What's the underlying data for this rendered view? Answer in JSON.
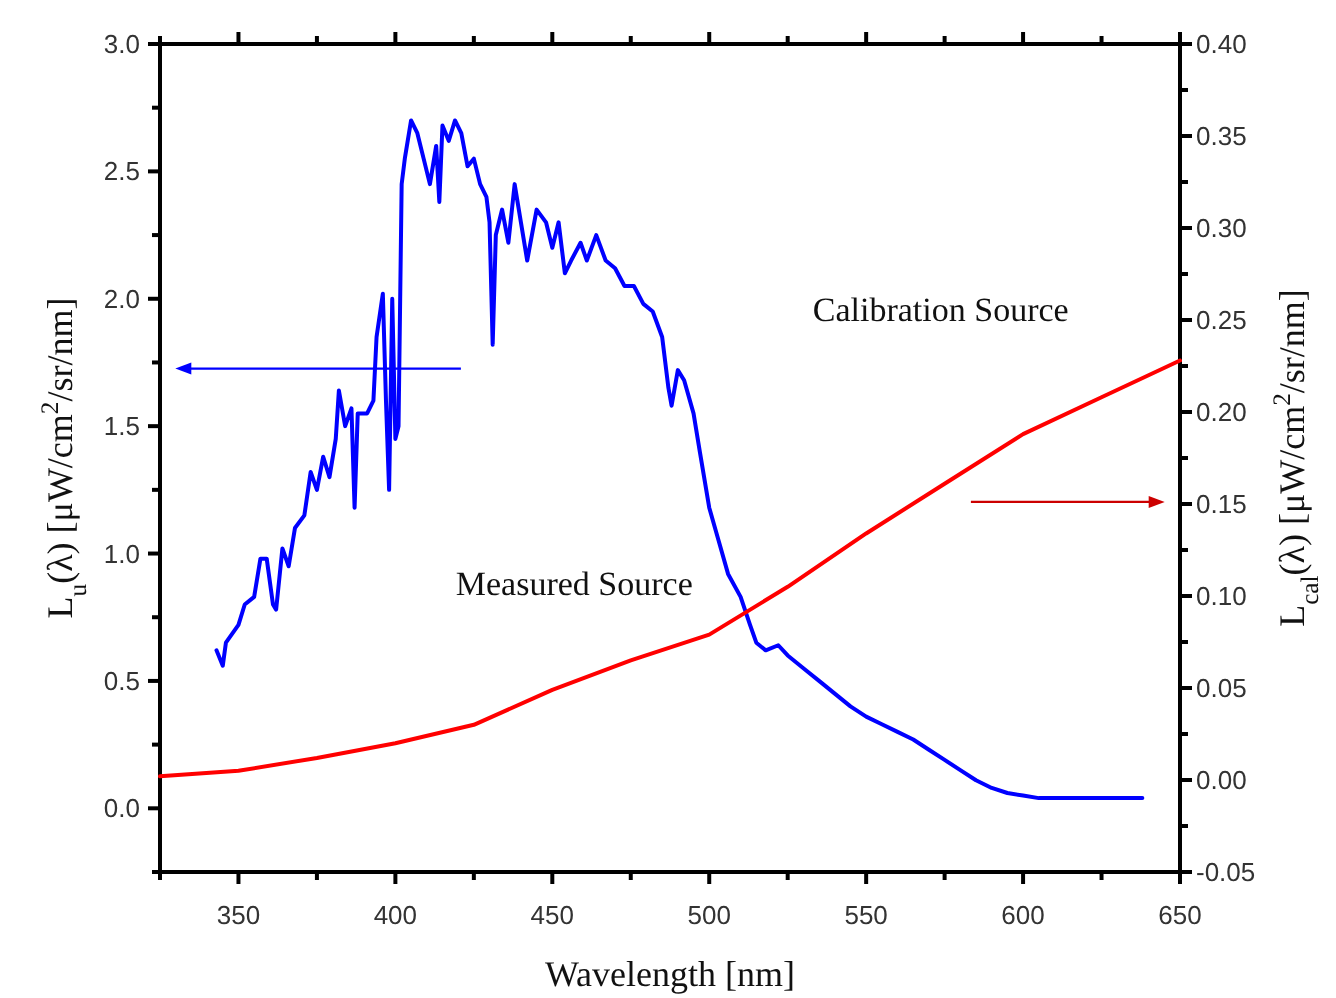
{
  "chart_data": {
    "type": "line",
    "xlabel": "Wavelength [nm]",
    "ylabel": "L$_{u}$(λ) [μW/cm$^{2}$/sr/nm]",
    "y2label": "L$_{cal}$(λ) [μW/cm$^{2}$/sr/nm]",
    "xlim": [
      325,
      650
    ],
    "xticks": [
      {
        "value": 325,
        "label": null
      },
      350,
      {
        "value": 375,
        "label": null
      },
      400,
      {
        "value": 425,
        "label": null
      },
      450,
      {
        "value": 475,
        "label": null
      },
      500,
      {
        "value": 525,
        "label": null
      },
      550,
      {
        "value": 575,
        "label": null
      },
      600,
      {
        "value": 625,
        "label": null
      },
      650
    ],
    "ylim": [
      -0.25,
      3.0
    ],
    "yticks": [
      {
        "value": -0.25,
        "label": null
      },
      {
        "value": 0,
        "label": "0.0"
      },
      {
        "value": 0.25,
        "label": null
      },
      0.5,
      {
        "value": 0.75,
        "label": null
      },
      {
        "value": 1,
        "label": "1.0"
      },
      {
        "value": 1.25,
        "label": null
      },
      1.5,
      {
        "value": 1.75,
        "label": null
      },
      {
        "value": 2,
        "label": "2.0"
      },
      {
        "value": 2.25,
        "label": null
      },
      2.5,
      {
        "value": 2.75,
        "label": null
      },
      {
        "value": 3,
        "label": "3.0"
      }
    ],
    "y2lim": [
      -0.05,
      0.4
    ],
    "y2ticks": [
      {
        "value": -0.05,
        "label": "-0.05"
      },
      {
        "value": -0.025,
        "label": null
      },
      {
        "value": 0,
        "label": "0.00"
      },
      {
        "value": 0.025,
        "label": null
      },
      {
        "value": 0.05,
        "label": "0.05"
      },
      {
        "value": 0.075,
        "label": null
      },
      {
        "value": 0.1,
        "label": "0.10"
      },
      {
        "value": 0.125,
        "label": null
      },
      {
        "value": 0.15,
        "label": "0.15"
      },
      {
        "value": 0.175,
        "label": null
      },
      {
        "value": 0.2,
        "label": "0.20"
      },
      {
        "value": 0.225,
        "label": null
      },
      {
        "value": 0.25,
        "label": "0.25"
      },
      {
        "value": 0.275,
        "label": null
      },
      {
        "value": 0.3,
        "label": "0.30"
      },
      {
        "value": 0.325,
        "label": null
      },
      {
        "value": 0.35,
        "label": "0.35"
      },
      {
        "value": 0.375,
        "label": null
      },
      {
        "value": 0.4,
        "label": "0.40"
      }
    ],
    "grid": false,
    "line_style": "solid",
    "series": [
      {
        "name": "Measured Source",
        "color": "#0000ff",
        "x": [
          343,
          345,
          346,
          350,
          352,
          355,
          357,
          359,
          361,
          362,
          364,
          366,
          368,
          371,
          373,
          375,
          377,
          379,
          381,
          382,
          384,
          386,
          387,
          388,
          391,
          393,
          394,
          396,
          397,
          398,
          399,
          400,
          401,
          402,
          403,
          405,
          407,
          409,
          411,
          413,
          414,
          415,
          417,
          419,
          421,
          423,
          425,
          427,
          429,
          430,
          431,
          432,
          434,
          436,
          438,
          440,
          442,
          445,
          448,
          450,
          452,
          454,
          456,
          459,
          461,
          464,
          467,
          470,
          473,
          476,
          479,
          482,
          485,
          487,
          488,
          490,
          492,
          495,
          497,
          500,
          503,
          506,
          510,
          513,
          515,
          518,
          522,
          525,
          530,
          535,
          540,
          545,
          550,
          555,
          560,
          565,
          570,
          575,
          580,
          585,
          590,
          595,
          600,
          605,
          638
        ],
        "values": [
          0.62,
          0.56,
          0.65,
          0.72,
          0.8,
          0.83,
          0.98,
          0.98,
          0.8,
          0.78,
          1.02,
          0.95,
          1.1,
          1.15,
          1.32,
          1.25,
          1.38,
          1.3,
          1.45,
          1.64,
          1.5,
          1.57,
          1.18,
          1.55,
          1.55,
          1.6,
          1.85,
          2.02,
          1.6,
          1.25,
          2.0,
          1.45,
          1.5,
          2.45,
          2.55,
          2.7,
          2.65,
          2.55,
          2.45,
          2.6,
          2.38,
          2.68,
          2.62,
          2.7,
          2.65,
          2.52,
          2.55,
          2.45,
          2.4,
          2.3,
          1.82,
          2.25,
          2.35,
          2.22,
          2.45,
          2.3,
          2.15,
          2.35,
          2.3,
          2.2,
          2.3,
          2.1,
          2.15,
          2.22,
          2.15,
          2.25,
          2.15,
          2.12,
          2.05,
          2.05,
          1.98,
          1.95,
          1.85,
          1.65,
          1.58,
          1.72,
          1.68,
          1.55,
          1.4,
          1.18,
          1.05,
          0.92,
          0.83,
          0.72,
          0.65,
          0.62,
          0.64,
          0.6,
          0.55,
          0.5,
          0.45,
          0.4,
          0.36,
          0.33,
          0.3,
          0.27,
          0.23,
          0.19,
          0.15,
          0.11,
          0.08,
          0.06,
          0.05,
          0.04,
          0.04
        ]
      },
      {
        "name": "Calibration Source",
        "color": "#ff0000",
        "axis": "y2",
        "x": [
          325,
          350,
          375,
          400,
          425,
          450,
          475,
          500,
          525,
          550,
          575,
          600,
          625,
          650
        ],
        "values": [
          0.002,
          0.005,
          0.012,
          0.02,
          0.03,
          0.049,
          0.065,
          0.079,
          0.105,
          0.134,
          0.161,
          0.188,
          0.208,
          0.228
        ]
      }
    ]
  }
}
